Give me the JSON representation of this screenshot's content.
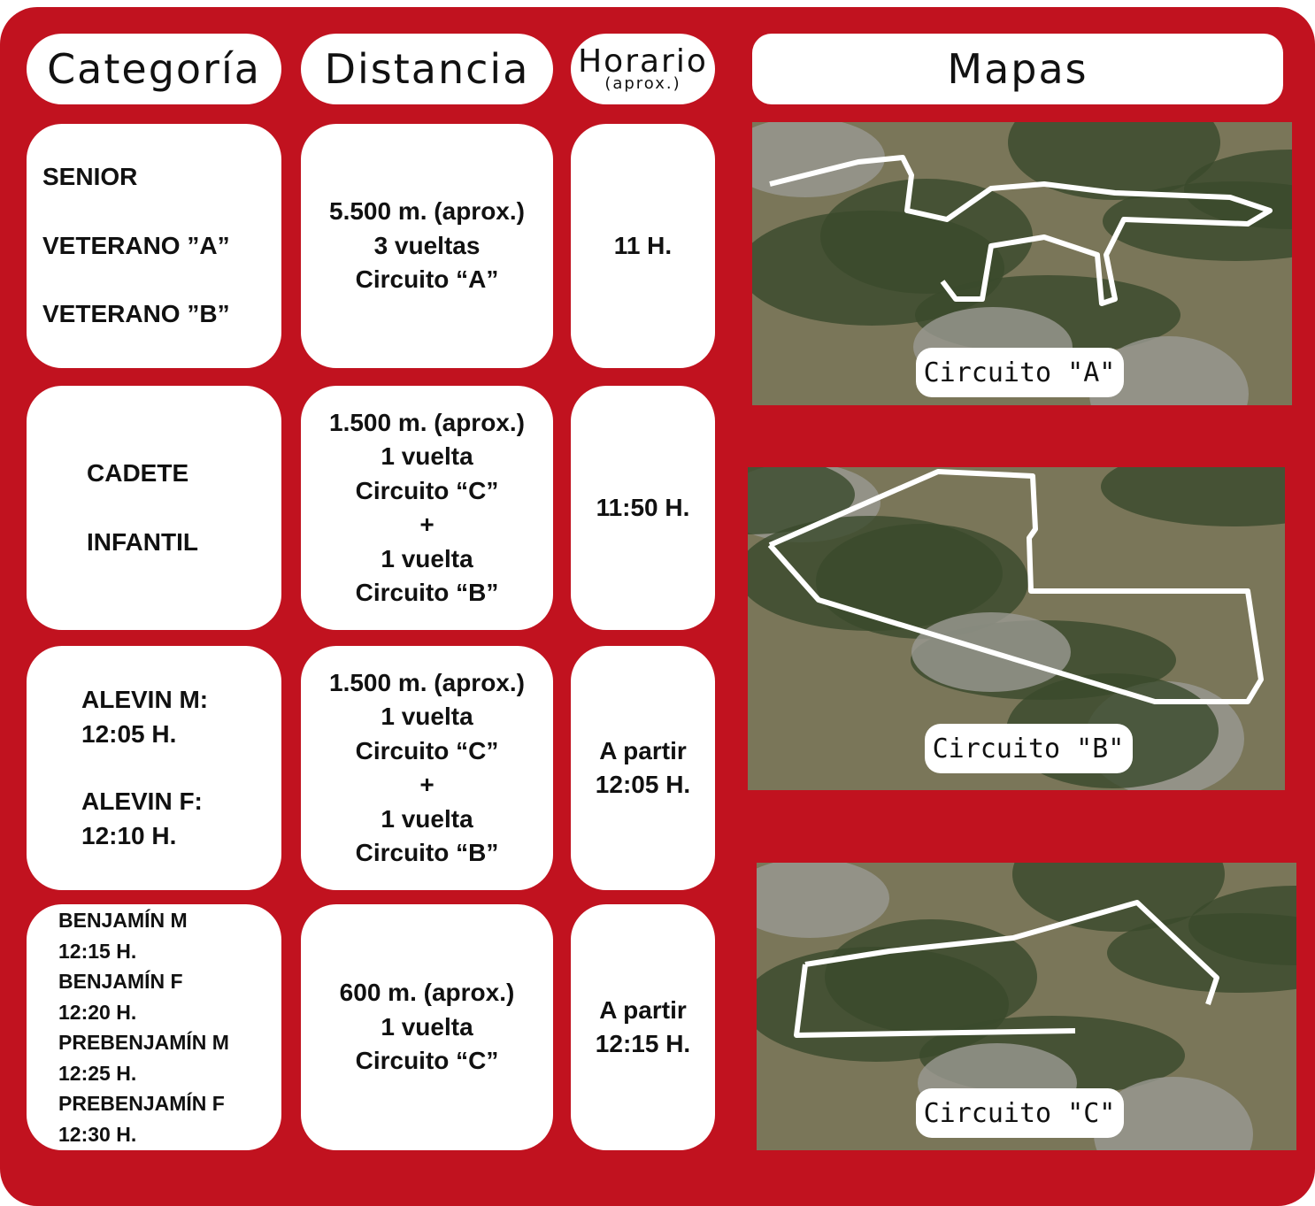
{
  "header": {
    "categoria": "Categoría",
    "distancia": "Distancia",
    "horario": "Horario",
    "horario_note": "(aprox.)",
    "mapas": "Mapas"
  },
  "rows": [
    {
      "categoria": [
        [
          "SENIOR"
        ],
        [
          "VETERANO ”A”"
        ],
        [
          "VETERANO ”B”"
        ]
      ],
      "distancia": [
        "5.500 m. (aprox.)",
        "3 vueltas",
        "Circuito “A”"
      ],
      "horario": [
        "11 H."
      ]
    },
    {
      "categoria": [
        [
          "CADETE"
        ],
        [
          "INFANTIL"
        ]
      ],
      "distancia": [
        "1.500 m. (aprox.)",
        "1 vuelta",
        "Circuito “C”",
        "+",
        "1 vuelta",
        "Circuito “B”"
      ],
      "horario": [
        "11:50 H."
      ]
    },
    {
      "categoria": [
        [
          "ALEVIN M:",
          "12:05 H."
        ],
        [
          "ALEVIN F:",
          "12:10 H."
        ]
      ],
      "distancia": [
        "1.500 m. (aprox.)",
        "1 vuelta",
        "Circuito “C”",
        "+",
        "1 vuelta",
        "Circuito “B”"
      ],
      "horario": [
        "A partir",
        "12:05 H."
      ]
    },
    {
      "categoria": [
        [
          "BENJAMÍN M",
          "12:15 H."
        ],
        [
          "BENJAMÍN F",
          "12:20 H."
        ],
        [
          "PREBENJAMÍN M",
          "12:25 H."
        ],
        [
          "PREBENJAMÍN F",
          "12:30 H."
        ]
      ],
      "distancia": [
        "600 m. (aprox.)",
        "1 vuelta",
        "Circuito “C”"
      ],
      "horario": [
        "A partir",
        "12:15 H."
      ]
    }
  ],
  "maps": [
    {
      "label": "Circuito \"A\""
    },
    {
      "label": "Circuito \"B\""
    },
    {
      "label": "Circuito \"C\""
    }
  ]
}
